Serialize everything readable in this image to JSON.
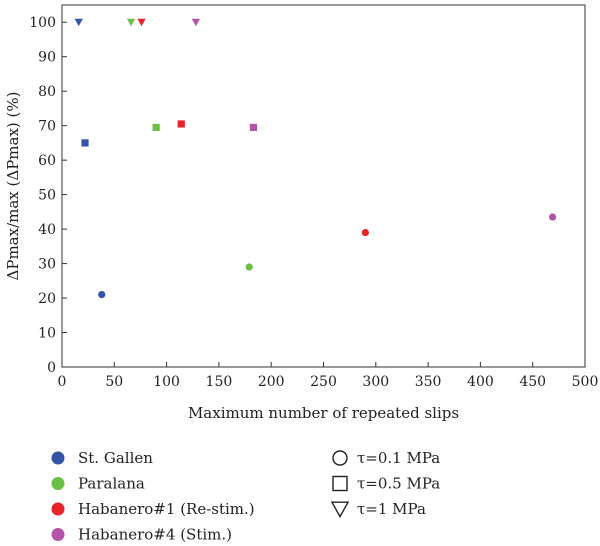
{
  "chart_data": {
    "type": "scatter",
    "xlabel": "Maximum number of repeated slips",
    "ylabel": "ΔPmax/max (ΔPmax) (%)",
    "xlim": [
      0,
      500
    ],
    "ylim": [
      0,
      105
    ],
    "xticks": [
      0,
      50,
      100,
      150,
      200,
      250,
      300,
      350,
      400,
      450,
      500
    ],
    "yticks": [
      0,
      10,
      20,
      30,
      40,
      50,
      60,
      70,
      80,
      90,
      100
    ],
    "grid": false,
    "legend_placement": "bottom",
    "series": [
      {
        "name": "St. Gallen",
        "color": "#3355a5",
        "points": [
          {
            "x": 38,
            "y": 21,
            "marker": "circle"
          },
          {
            "x": 22,
            "y": 65,
            "marker": "square"
          },
          {
            "x": 16,
            "y": 100,
            "marker": "triangle-down"
          }
        ]
      },
      {
        "name": "Paralana",
        "color": "#6abf45",
        "points": [
          {
            "x": 179,
            "y": 29,
            "marker": "circle"
          },
          {
            "x": 90,
            "y": 69.5,
            "marker": "square"
          },
          {
            "x": 66,
            "y": 100,
            "marker": "triangle-down"
          }
        ]
      },
      {
        "name": "Habanero#1 (Re-stim.)",
        "color": "#e8232a",
        "points": [
          {
            "x": 290,
            "y": 39,
            "marker": "circle"
          },
          {
            "x": 114,
            "y": 70.5,
            "marker": "square"
          },
          {
            "x": 76,
            "y": 100,
            "marker": "triangle-down"
          }
        ]
      },
      {
        "name": "Habanero#4 (Stim.)",
        "color": "#b454a8",
        "points": [
          {
            "x": 469,
            "y": 43.5,
            "marker": "circle"
          },
          {
            "x": 183,
            "y": 69.5,
            "marker": "square"
          },
          {
            "x": 128,
            "y": 100,
            "marker": "triangle-down"
          }
        ]
      }
    ],
    "marker_legend": [
      {
        "label": "τ=0.1 MPa",
        "marker": "circle"
      },
      {
        "label": "τ=0.5 MPa",
        "marker": "square"
      },
      {
        "label": "τ=1 MPa",
        "marker": "triangle-down"
      }
    ]
  }
}
